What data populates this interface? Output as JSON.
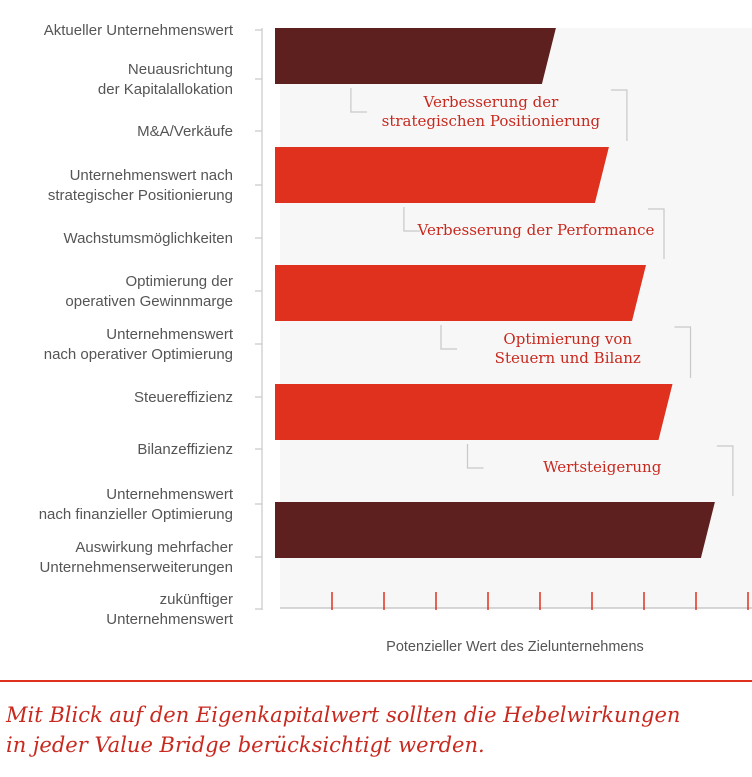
{
  "chart_data": {
    "type": "bar",
    "orientation": "horizontal",
    "rows": [
      [
        "Aktueller Unternehmenswert"
      ],
      [
        "Neuausrichtung",
        "der Kapitalallokation"
      ],
      [
        "M&A/Verkäufe"
      ],
      [
        "Unternehmenswert nach",
        "strategischer Positionierung"
      ],
      [
        "Wachstumsmöglichkeiten"
      ],
      [
        "Optimierung der",
        "operativen Gewinnmarge"
      ],
      [
        "Unternehmenswert",
        "nach operativer Optimierung"
      ],
      [
        "Steuereffizienz"
      ],
      [
        "Bilanzeffizienz"
      ],
      [
        "Unternehmenswert",
        "nach finanzieller Optimierung"
      ],
      [
        "Auswirkung mehrfacher",
        "Unternehmenserweiterungen"
      ],
      [
        "zukünftiger",
        "Unternehmenswert"
      ]
    ],
    "bars": [
      {
        "category": "Aktueller Unternehmenswert",
        "value": 5.3,
        "color": "#5e1f1f"
      },
      {
        "category": "Unternehmenswert nach strategischer Positionierung",
        "value": 6.3,
        "color": "#e0301e"
      },
      {
        "category": "Unternehmenswert nach operativer Optimierung",
        "value": 7.0,
        "color": "#e0301e"
      },
      {
        "category": "Unternehmenswert nach finanzieller Optimierung",
        "value": 7.5,
        "color": "#e0301e"
      },
      {
        "category": "Unternehmenswert nach finanzieller Optimierung (dunkel)",
        "value": 8.3,
        "color": "#5e1f1f"
      }
    ],
    "brackets": [
      {
        "label": [
          "Verbesserung der",
          "strategischen Positionierung"
        ]
      },
      {
        "label": [
          "Verbesserung der Performance"
        ]
      },
      {
        "label": [
          "Optimierung von",
          "Steuern und Bilanz"
        ]
      },
      {
        "label": [
          "Wertsteigerung"
        ]
      }
    ],
    "xlabel": "Potenzieller Wert des Zielunternehmens",
    "xlim": [
      0,
      9
    ],
    "xticks": 9,
    "colors": {
      "dark": "#5e1f1f",
      "red": "#e0301e",
      "text": "#555555",
      "bracket_text": "#c8291f",
      "axis": "#c8c8c8"
    }
  },
  "caption": {
    "line1": "Mit Blick auf den Eigenkapitalwert sollten die Hebelwirkungen",
    "line2": "in jeder Value Bridge berücksichtigt werden."
  }
}
